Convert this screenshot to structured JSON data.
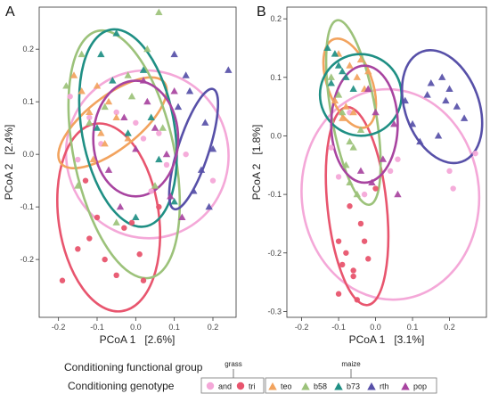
{
  "colors": {
    "and": "#f4a8d8",
    "tri": "#e8556e",
    "teo": "#f2a35e",
    "b58": "#9cc27a",
    "b73": "#1f8f84",
    "rth": "#5750a8",
    "pop": "#a844a0"
  },
  "chart_data": [
    {
      "type": "scatter",
      "panel_label": "A",
      "xlabel": "PCoA 1   [2.6%]",
      "ylabel": "PCoA 2   [2.4%]",
      "xlim": [
        -0.25,
        0.26
      ],
      "ylim": [
        -0.31,
        0.28
      ],
      "xticks": [
        -0.2,
        -0.1,
        0.0,
        0.1,
        0.2
      ],
      "xtick_labels": [
        "-0.2",
        "-0.1",
        "0.0",
        "0.1",
        "0.2"
      ],
      "yticks": [
        -0.2,
        -0.1,
        0.0,
        0.1,
        0.2
      ],
      "ytick_labels": [
        "-0.2",
        "-0.1",
        "0.0",
        "0.1",
        "0.2"
      ],
      "grid": false,
      "ellipses": [
        {
          "group": "and",
          "cx": 0.03,
          "cy": 0.0,
          "rx": 0.21,
          "ry": 0.16,
          "angle": -15
        },
        {
          "group": "tri",
          "cx": -0.07,
          "cy": -0.12,
          "rx": 0.13,
          "ry": 0.18,
          "angle": -8
        },
        {
          "group": "teo",
          "cx": -0.06,
          "cy": 0.06,
          "rx": 0.17,
          "ry": 0.05,
          "angle": -38
        },
        {
          "group": "b58",
          "cx": -0.03,
          "cy": 0.0,
          "rx": 0.13,
          "ry": 0.24,
          "angle": -12
        },
        {
          "group": "b73",
          "cx": -0.02,
          "cy": 0.05,
          "rx": 0.12,
          "ry": 0.19,
          "angle": -10
        },
        {
          "group": "rth",
          "cx": 0.15,
          "cy": 0.01,
          "rx": 0.04,
          "ry": 0.12,
          "angle": 18
        },
        {
          "group": "pop",
          "cx": 0.0,
          "cy": 0.03,
          "rx": 0.11,
          "ry": 0.11,
          "angle": 0
        }
      ],
      "series": [
        {
          "name": "and",
          "shape": "circle",
          "x": [
            0.02,
            0.08,
            -0.09,
            0.0,
            -0.17,
            0.04,
            0.2,
            -0.15,
            -0.05,
            0.06,
            -0.12,
            0.13
          ],
          "y": [
            0.03,
            -0.02,
            0.02,
            0.06,
            0.11,
            -0.07,
            -0.05,
            -0.01,
            0.08,
            0.04,
            0.07,
            0.0
          ]
        },
        {
          "name": "tri",
          "shape": "circle",
          "x": [
            -0.12,
            -0.05,
            0.02,
            -0.19,
            -0.1,
            0.01,
            -0.03,
            -0.08,
            0.06,
            -0.13,
            -0.15,
            -0.01
          ],
          "y": [
            -0.16,
            -0.23,
            -0.24,
            -0.24,
            -0.12,
            -0.19,
            -0.14,
            -0.2,
            -0.1,
            -0.05,
            -0.18,
            -0.13
          ]
        },
        {
          "name": "teo",
          "shape": "triangle",
          "x": [
            -0.14,
            -0.12,
            -0.09,
            -0.07,
            -0.11,
            -0.16,
            -0.05,
            -0.02,
            -0.1,
            -0.08
          ],
          "y": [
            0.12,
            0.08,
            0.04,
            0.1,
            -0.01,
            0.15,
            0.07,
            0.03,
            0.13,
            0.02
          ]
        },
        {
          "name": "b58",
          "shape": "triangle",
          "x": [
            -0.14,
            -0.18,
            -0.08,
            -0.01,
            0.06,
            0.03,
            -0.12,
            0.05,
            -0.05,
            -0.15,
            -0.02,
            0.07
          ],
          "y": [
            0.19,
            0.13,
            0.09,
            0.11,
            0.27,
            0.2,
            0.06,
            -0.06,
            -0.13,
            -0.06,
            0.15,
            0.05
          ]
        },
        {
          "name": "b73",
          "shape": "triangle",
          "x": [
            -0.05,
            -0.09,
            0.02,
            -0.02,
            0.04,
            -0.1,
            0.1,
            0.06,
            0.0,
            -0.06
          ],
          "y": [
            0.23,
            0.19,
            0.16,
            0.04,
            0.07,
            0.05,
            -0.09,
            -0.01,
            -0.12,
            0.14
          ]
        },
        {
          "name": "rth",
          "shape": "triangle",
          "x": [
            0.1,
            0.14,
            0.18,
            0.2,
            0.17,
            0.15,
            0.11,
            0.13,
            0.19,
            0.24
          ],
          "y": [
            0.19,
            0.12,
            0.06,
            0.01,
            -0.03,
            -0.07,
            0.09,
            0.15,
            -0.1,
            0.16
          ]
        },
        {
          "name": "pop",
          "shape": "triangle",
          "x": [
            -0.03,
            0.03,
            0.08,
            0.1,
            -0.07,
            0.0,
            0.05,
            0.09,
            -0.04,
            0.12,
            0.02
          ],
          "y": [
            0.07,
            0.1,
            0.0,
            0.12,
            -0.03,
            0.01,
            0.05,
            -0.08,
            -0.1,
            -0.12,
            0.14
          ]
        }
      ]
    },
    {
      "type": "scatter",
      "panel_label": "B",
      "xlabel": "PCoA 1   [3.1%]",
      "ylabel": "PCoA 2   [1.8%]",
      "xlim": [
        -0.24,
        0.3
      ],
      "ylim": [
        -0.31,
        0.22
      ],
      "xticks": [
        -0.2,
        -0.1,
        0.0,
        0.1,
        0.2
      ],
      "xtick_labels": [
        "-0.2",
        "-0.1",
        "0.0",
        "0.1",
        "0.2"
      ],
      "yticks": [
        -0.3,
        -0.2,
        -0.1,
        0.0,
        0.1,
        0.2
      ],
      "ytick_labels": [
        "-0.3",
        "-0.2",
        "-0.1",
        "0.0",
        "0.1",
        "0.2"
      ],
      "grid": false,
      "ellipses": [
        {
          "group": "and",
          "cx": 0.04,
          "cy": -0.1,
          "rx": 0.24,
          "ry": 0.18,
          "angle": -5
        },
        {
          "group": "tri",
          "cx": -0.05,
          "cy": -0.12,
          "rx": 0.08,
          "ry": 0.17,
          "angle": -6
        },
        {
          "group": "teo",
          "cx": -0.07,
          "cy": 0.09,
          "rx": 0.06,
          "ry": 0.08,
          "angle": -20
        },
        {
          "group": "b58",
          "cx": -0.06,
          "cy": 0.04,
          "rx": 0.06,
          "ry": 0.16,
          "angle": -10
        },
        {
          "group": "b73",
          "cx": -0.04,
          "cy": 0.07,
          "rx": 0.11,
          "ry": 0.07,
          "angle": -45
        },
        {
          "group": "rth",
          "cx": 0.18,
          "cy": 0.05,
          "rx": 0.1,
          "ry": 0.1,
          "angle": -20
        },
        {
          "group": "pop",
          "cx": -0.03,
          "cy": 0.02,
          "rx": 0.09,
          "ry": 0.1,
          "angle": 0
        }
      ],
      "series": [
        {
          "name": "and",
          "shape": "circle",
          "x": [
            0.2,
            0.27,
            0.21,
            0.04,
            -0.07,
            -0.1,
            -0.12,
            -0.03,
            0.06
          ],
          "y": [
            -0.06,
            -0.03,
            -0.09,
            -0.06,
            0.04,
            -0.07,
            -0.02,
            -0.1,
            -0.04
          ]
        },
        {
          "name": "tri",
          "shape": "circle",
          "x": [
            -0.1,
            -0.08,
            -0.06,
            -0.04,
            -0.02,
            -0.1,
            -0.05,
            -0.07,
            0.0,
            -0.03,
            -0.06,
            -0.09
          ],
          "y": [
            -0.18,
            -0.2,
            -0.24,
            -0.15,
            -0.21,
            -0.27,
            -0.28,
            -0.12,
            -0.09,
            -0.18,
            -0.23,
            -0.22
          ]
        },
        {
          "name": "teo",
          "shape": "triangle",
          "x": [
            -0.1,
            -0.07,
            -0.05,
            -0.03,
            -0.11,
            -0.08,
            -0.06,
            -0.09,
            -0.04,
            -0.02
          ],
          "y": [
            0.14,
            0.12,
            0.1,
            0.08,
            0.06,
            0.05,
            0.04,
            0.03,
            0.13,
            0.11
          ]
        },
        {
          "name": "b58",
          "shape": "triangle",
          "x": [
            -0.12,
            -0.09,
            -0.06,
            -0.08,
            -0.07,
            -0.05,
            -0.04,
            -0.1,
            -0.07
          ],
          "y": [
            0.1,
            0.04,
            -0.02,
            -0.05,
            -0.08,
            -0.1,
            0.01,
            0.07,
            -0.01
          ]
        },
        {
          "name": "b73",
          "shape": "triangle",
          "x": [
            -0.13,
            -0.11,
            -0.1,
            -0.08,
            -0.06,
            -0.12,
            -0.09
          ],
          "y": [
            0.15,
            0.14,
            0.12,
            0.1,
            0.08,
            0.09,
            0.11
          ]
        },
        {
          "name": "rth",
          "shape": "triangle",
          "x": [
            0.08,
            0.14,
            0.18,
            0.2,
            0.22,
            0.24,
            0.17,
            0.12,
            0.1,
            0.19,
            0.15
          ],
          "y": [
            0.06,
            0.07,
            0.1,
            0.08,
            0.05,
            0.03,
            0.0,
            -0.01,
            0.02,
            0.06,
            0.09
          ]
        },
        {
          "name": "pop",
          "shape": "triangle",
          "x": [
            -0.02,
            0.0,
            0.05,
            0.02,
            -0.01,
            0.06,
            -0.04
          ],
          "y": [
            0.08,
            0.04,
            0.02,
            -0.04,
            -0.08,
            -0.1,
            -0.06
          ]
        }
      ]
    }
  ],
  "legend": {
    "functional_group_title": "Conditioning functional group",
    "genotype_title": "Conditioning genotype",
    "group_grass": "grass",
    "group_maize": "maize",
    "items": [
      {
        "key": "and",
        "label": "and",
        "shape": "circle"
      },
      {
        "key": "tri",
        "label": "tri",
        "shape": "circle"
      },
      {
        "key": "teo",
        "label": "teo",
        "shape": "triangle"
      },
      {
        "key": "b58",
        "label": "b58",
        "shape": "triangle"
      },
      {
        "key": "b73",
        "label": "b73",
        "shape": "triangle"
      },
      {
        "key": "rth",
        "label": "rth",
        "shape": "triangle"
      },
      {
        "key": "pop",
        "label": "pop",
        "shape": "triangle"
      }
    ]
  }
}
